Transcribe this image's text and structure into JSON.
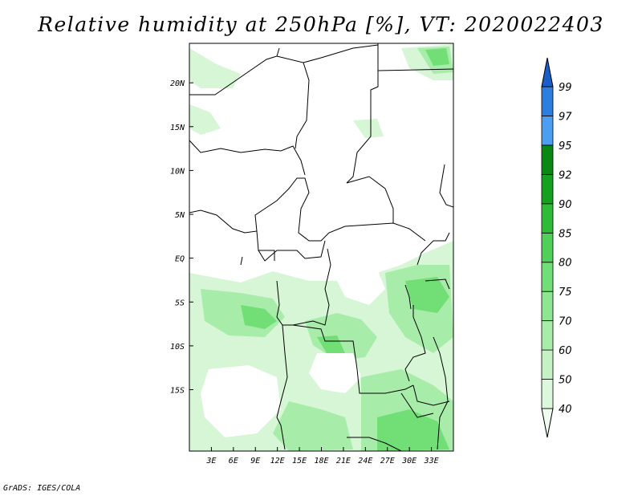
{
  "title": "Relative humidity at 250hPa [%], VT: 2020022403",
  "credit": "GrADS: IGES/COLA",
  "map": {
    "lon_range": [
      0,
      36
    ],
    "lat_range": [
      -22,
      24.5
    ],
    "x_ticks": [
      {
        "lon": 3,
        "label": "3E"
      },
      {
        "lon": 6,
        "label": "6E"
      },
      {
        "lon": 9,
        "label": "9E"
      },
      {
        "lon": 12,
        "label": "12E"
      },
      {
        "lon": 15,
        "label": "15E"
      },
      {
        "lon": 18,
        "label": "18E"
      },
      {
        "lon": 21,
        "label": "21E"
      },
      {
        "lon": 24,
        "label": "24E"
      },
      {
        "lon": 27,
        "label": "27E"
      },
      {
        "lon": 30,
        "label": "30E"
      },
      {
        "lon": 33,
        "label": "33E"
      }
    ],
    "y_ticks": [
      {
        "lat": 20,
        "label": "20N"
      },
      {
        "lat": 15,
        "label": "15N"
      },
      {
        "lat": 10,
        "label": "10N"
      },
      {
        "lat": 5,
        "label": "5N"
      },
      {
        "lat": 0,
        "label": "EQ"
      },
      {
        "lat": -5,
        "label": "5S"
      },
      {
        "lat": -10,
        "label": "10S"
      },
      {
        "lat": -15,
        "label": "15S"
      }
    ]
  },
  "colorbar": {
    "levels": [
      "40",
      "50",
      "60",
      "70",
      "75",
      "80",
      "85",
      "90",
      "92",
      "95",
      "97",
      "99"
    ],
    "colors": [
      "#f0fcf0",
      "#dcf8dc",
      "#c4f2c4",
      "#a8ecaa",
      "#8ee690",
      "#72de76",
      "#50d058",
      "#2ebc38",
      "#16a020",
      "#0a8814",
      "#4c9ef0",
      "#2e7ee0",
      "#1a5ec8"
    ]
  }
}
